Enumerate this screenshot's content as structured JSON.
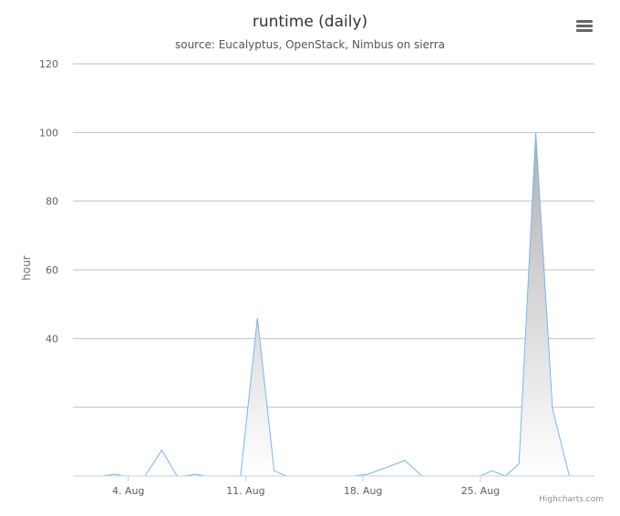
{
  "chart_data": {
    "type": "area",
    "title": "runtime (daily)",
    "subtitle": "source: Eucalyptus, OpenStack, Nimbus on sierra",
    "ylabel": "hour",
    "xlabel": "",
    "ylim": [
      0,
      120
    ],
    "y_ticks": [
      {
        "value": 120,
        "label": "120"
      },
      {
        "value": 100,
        "label": "100"
      },
      {
        "value": 80,
        "label": "80"
      },
      {
        "value": 60,
        "label": "60"
      },
      {
        "value": 40,
        "label": "40"
      },
      {
        "value": 20,
        "label": ""
      }
    ],
    "x_ticks": [
      {
        "day": 4,
        "label": "4. Aug"
      },
      {
        "day": 11,
        "label": "11. Aug"
      },
      {
        "day": 18,
        "label": "18. Aug"
      },
      {
        "day": 25,
        "label": "25. Aug"
      }
    ],
    "xlim_days": [
      0.7,
      31.8
    ],
    "grid": true,
    "line_color": "#7cb5ec",
    "fill_top_color": "#b0b0b0",
    "fill_bottom_color": "#ffffff",
    "series": [
      {
        "points": [
          [
            2.5,
            0
          ],
          [
            3.2,
            0.5
          ],
          [
            3.7,
            0
          ],
          [
            5.0,
            0
          ],
          [
            6.0,
            7.5
          ],
          [
            6.9,
            0
          ],
          [
            7.4,
            0
          ],
          [
            8.0,
            0.5
          ],
          [
            8.5,
            0
          ],
          [
            10.7,
            0
          ],
          [
            11.7,
            46
          ],
          [
            12.7,
            1.5
          ],
          [
            13.4,
            0
          ],
          [
            17.5,
            0
          ],
          [
            18.3,
            0.5
          ],
          [
            20.5,
            4.5
          ],
          [
            21.5,
            0
          ],
          [
            25.0,
            0
          ],
          [
            25.7,
            1.5
          ],
          [
            26.2,
            0.5
          ],
          [
            26.5,
            0
          ],
          [
            27.3,
            3.5
          ],
          [
            28.3,
            100
          ],
          [
            29.3,
            19.5
          ],
          [
            30.3,
            0
          ]
        ]
      }
    ]
  },
  "credits": "Highcharts.com",
  "menu": {
    "icon": "hamburger-menu-icon"
  }
}
